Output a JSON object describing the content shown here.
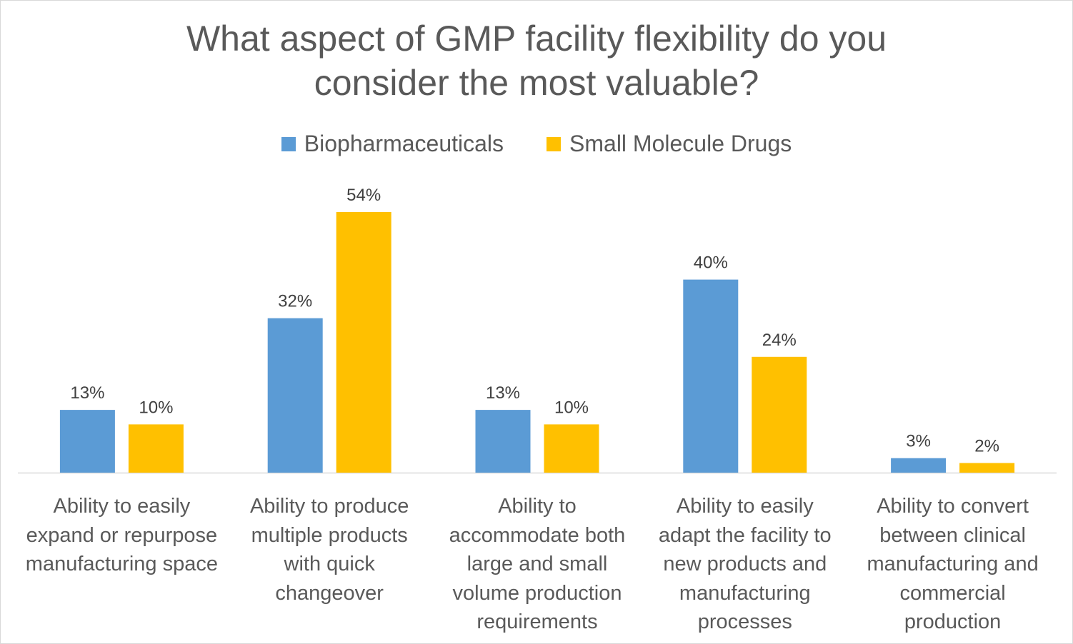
{
  "chart_data": {
    "type": "bar",
    "title_lines": [
      "What aspect of GMP facility flexibility do you",
      "consider the most valuable?"
    ],
    "categories": [
      [
        "Ability to easily",
        "expand or repurpose",
        "manufacturing space"
      ],
      [
        "Ability to produce",
        "multiple products",
        "with quick",
        "changeover"
      ],
      [
        "Ability to",
        "accommodate both",
        "large and small",
        "volume production",
        "requirements"
      ],
      [
        "Ability to easily",
        "adapt the facility to",
        "new products and",
        "manufacturing",
        "processes"
      ],
      [
        "Ability to convert",
        "between clinical",
        "manufacturing and",
        "commercial",
        "production"
      ]
    ],
    "series": [
      {
        "name": "Biopharmaceuticals",
        "color": "#5b9bd5",
        "values": [
          13,
          32,
          13,
          40,
          3
        ],
        "labels": [
          "13%",
          "32%",
          "13%",
          "40%",
          "3%"
        ]
      },
      {
        "name": "Small Molecule Drugs",
        "color": "#ffc000",
        "values": [
          10,
          54,
          10,
          24,
          2
        ],
        "labels": [
          "10%",
          "54%",
          "10%",
          "24%",
          "2%"
        ]
      }
    ],
    "ylim": [
      0,
      54
    ],
    "y_unit": "%",
    "grid": false,
    "legend_position": "top"
  }
}
